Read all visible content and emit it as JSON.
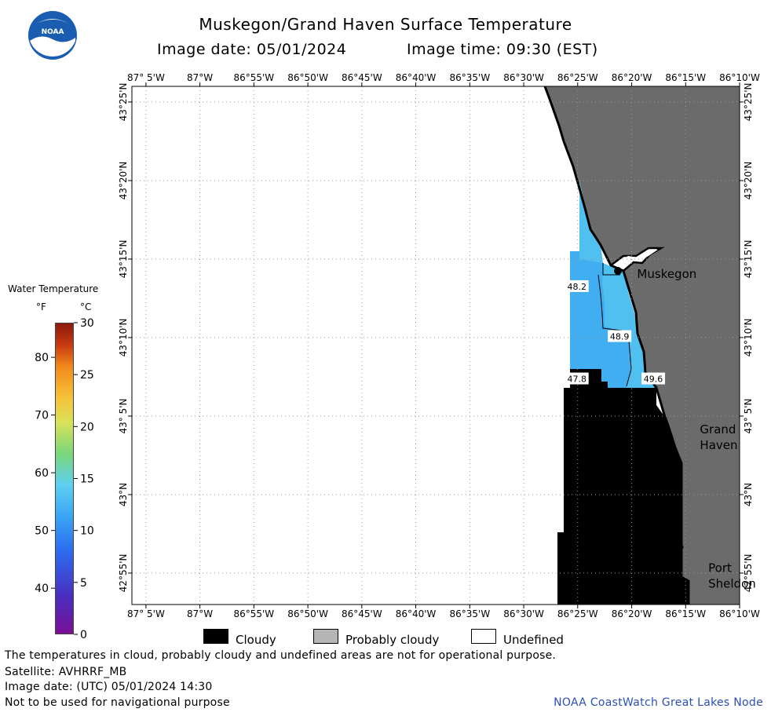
{
  "header": {
    "title": "Muskegon/Grand Haven Surface Temperature",
    "image_date_label": "Image date: 05/01/2024",
    "image_time_label": "Image time: 09:30 (EST)"
  },
  "logo": {
    "text": "NOAA"
  },
  "map": {
    "lon_labels": [
      "87° 5'W",
      "87°W",
      "86°55'W",
      "86°50'W",
      "86°45'W",
      "86°40'W",
      "86°35'W",
      "86°30'W",
      "86°25'W",
      "86°20'W",
      "86°15'W",
      "86°10'W"
    ],
    "lat_labels": [
      "43°25'N",
      "43°20'N",
      "43°15'N",
      "43°10'N",
      "43° 5'N",
      "43°N",
      "42°55'N"
    ],
    "temperature_labels": [
      {
        "value": "48.2",
        "lon": -86.418,
        "lat": 43.22
      },
      {
        "value": "48.9",
        "lon": -86.352,
        "lat": 43.167
      },
      {
        "value": "47.8",
        "lon": -86.418,
        "lat": 43.122
      },
      {
        "value": "49.6",
        "lon": -86.3,
        "lat": 43.122
      }
    ],
    "places": [
      {
        "name": "Muskegon",
        "lines": [
          "Muskegon"
        ],
        "lon": -86.325,
        "lat": 43.23
      },
      {
        "name": "Grand Haven",
        "lines": [
          "Grand",
          "Haven"
        ],
        "lon": -86.228,
        "lat": 43.065
      },
      {
        "name": "Port Sheldon",
        "lines": [
          "Port",
          "Sheldon"
        ],
        "lon": -86.215,
        "lat": 42.918
      }
    ],
    "colors": {
      "land": "#6b6b6b",
      "cloudy": "#000000",
      "water_light": "#4fc0f0",
      "water_mid": "#40aef0",
      "grid": "#9a9a9a"
    }
  },
  "colorbar": {
    "title": "Water Temperature",
    "unit_f": "°F",
    "unit_c": "°C",
    "f_ticks": [
      "80",
      "70",
      "60",
      "50",
      "40"
    ],
    "c_ticks": [
      "30",
      "25",
      "20",
      "15",
      "10",
      "5",
      "0"
    ]
  },
  "legend": {
    "cloudy": "Cloudy",
    "probably_cloudy": "Probably cloudy",
    "undefined": "Undefined"
  },
  "footer": {
    "disclaimer": "The temperatures in cloud, probably cloudy and undefined areas are not for operational purpose.",
    "satellite": "Satellite: AVHRRF_MB",
    "utc_date": "Image date: (UTC) 05/01/2024  14:30",
    "navigation": "Not to be used for navigational purpose",
    "credit": "NOAA CoastWatch Great Lakes Node"
  }
}
